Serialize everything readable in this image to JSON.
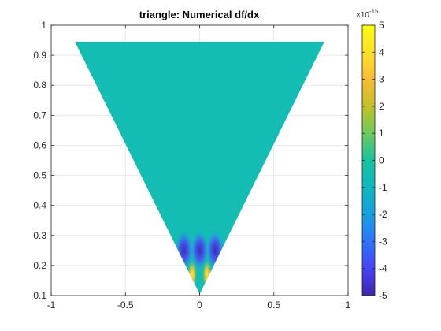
{
  "chart_data": {
    "type": "heatmap",
    "title": "triangle: Numerical df/dx",
    "xlim": [
      -1,
      1
    ],
    "ylim": [
      0.1,
      1
    ],
    "x_ticks": [
      -1,
      -0.5,
      0,
      0.5,
      1
    ],
    "x_tick_labels": [
      "-1",
      "-0.5",
      "0",
      "0.5",
      "1"
    ],
    "y_ticks": [
      0.1,
      0.2,
      0.3,
      0.4,
      0.5,
      0.6,
      0.7,
      0.8,
      0.9,
      1
    ],
    "y_tick_labels": [
      "0.1",
      "0.2",
      "0.3",
      "0.4",
      "0.5",
      "0.6",
      "0.7",
      "0.8",
      "0.9",
      "1"
    ],
    "grid": true,
    "domain_vertices": [
      [
        -0.84,
        0.945
      ],
      [
        0.84,
        0.945
      ],
      [
        0,
        0.105
      ]
    ],
    "background_value": 0,
    "features": [
      {
        "x": -0.105,
        "y_range": [
          0.18,
          0.32
        ],
        "sign": "negative"
      },
      {
        "x": 0.0,
        "y_range": [
          0.18,
          0.32
        ],
        "sign": "negative"
      },
      {
        "x": 0.105,
        "y_range": [
          0.18,
          0.32
        ],
        "sign": "negative"
      },
      {
        "x": -0.05,
        "y_range": [
          0.12,
          0.22
        ],
        "sign": "positive"
      },
      {
        "x": 0.05,
        "y_range": [
          0.12,
          0.22
        ],
        "sign": "positive"
      }
    ],
    "colorbar": {
      "colormap": "parula",
      "clim": [
        -5e-15,
        5e-15
      ],
      "exponent_label": "×10",
      "exponent_power": "-15",
      "ticks": [
        -5,
        -4,
        -3,
        -2,
        -1,
        0,
        1,
        2,
        3,
        4,
        5
      ],
      "tick_labels": [
        "-5",
        "-4",
        "-3",
        "-2",
        "-1",
        "0",
        "1",
        "2",
        "3",
        "4",
        "5"
      ],
      "stops": [
        "#3e26a8",
        "#4743f8",
        "#2c75ff",
        "#15a1de",
        "#0bb9bf",
        "#16c2a0",
        "#6cca5a",
        "#c2c123",
        "#f9bb35",
        "#fee225",
        "#f9fb0e"
      ]
    }
  }
}
